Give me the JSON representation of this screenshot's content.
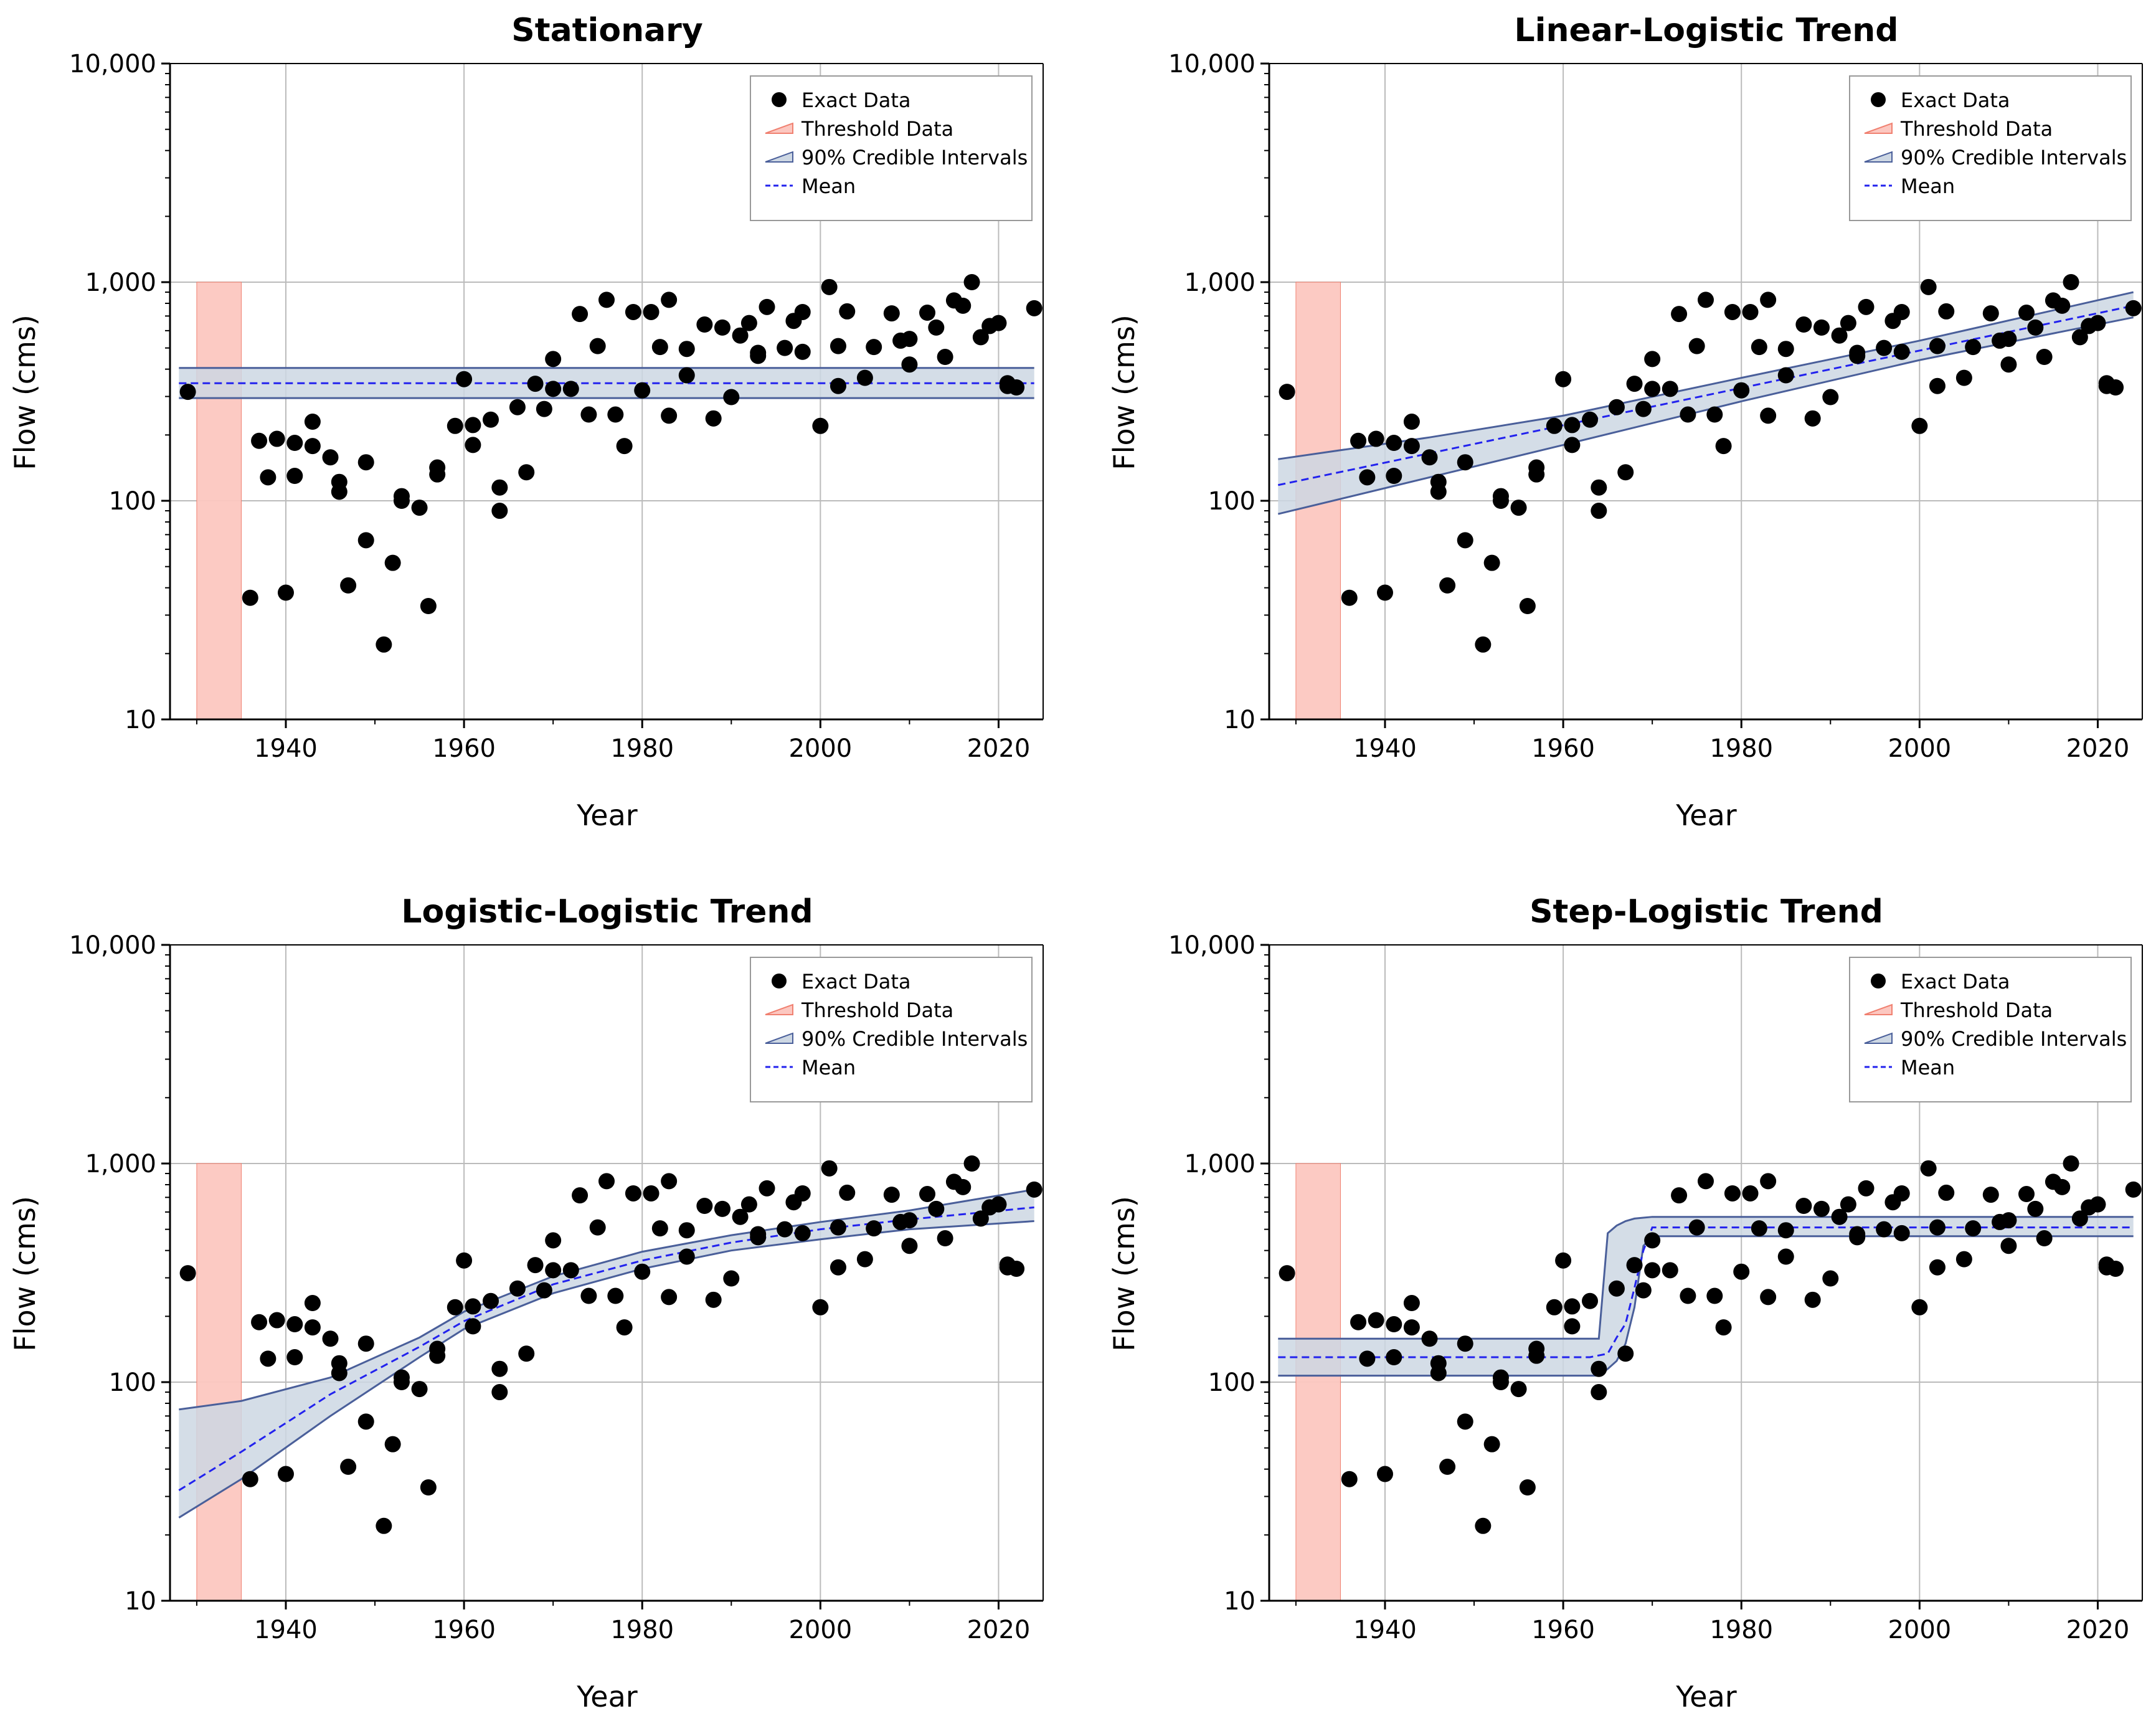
{
  "colors": {
    "threshold_fill": "#fcc7c0",
    "threshold_stroke": "#f08070",
    "band_fill": "#cdd7e3",
    "band_stroke": "#4a5f9a",
    "mean_line": "#2222ee",
    "points": "#000000",
    "grid": "#bbbbbb"
  },
  "legend": {
    "exact": "Exact Data",
    "threshold": "Threshold Data",
    "ci": "90% Credible Intervals",
    "mean": "Mean"
  },
  "observations": {
    "years": [
      1929,
      1936,
      1937,
      1938,
      1939,
      1940,
      1941,
      1941,
      1943,
      1943,
      1945,
      1946,
      1946,
      1947,
      1949,
      1949,
      1951,
      1952,
      1953,
      1953,
      1955,
      1956,
      1957,
      1957,
      1959,
      1960,
      1961,
      1961,
      1963,
      1964,
      1964,
      1966,
      1967,
      1968,
      1969,
      1970,
      1970,
      1972,
      1973,
      1974,
      1975,
      1976,
      1977,
      1978,
      1979,
      1980,
      1981,
      1982,
      1983,
      1983,
      1985,
      1985,
      1987,
      1988,
      1989,
      1990,
      1991,
      1992,
      1993,
      1993,
      1994,
      1996,
      1997,
      1998,
      1998,
      2000,
      2001,
      2002,
      2002,
      2003,
      2005,
      2006,
      2008,
      2009,
      2010,
      2010,
      2012,
      2013,
      2014,
      2015,
      2016,
      2017,
      2018,
      2019,
      2020,
      2021,
      2021,
      2022,
      2024
    ],
    "flows": [
      315,
      36,
      188,
      128,
      192,
      38,
      184,
      130,
      178,
      230,
      158,
      122,
      110,
      41,
      66,
      150,
      22,
      52,
      105,
      100,
      93,
      33,
      132,
      142,
      220,
      360,
      222,
      180,
      235,
      115,
      90,
      268,
      135,
      343,
      263,
      445,
      325,
      325,
      715,
      248,
      510,
      830,
      248,
      178,
      730,
      320,
      730,
      505,
      245,
      830,
      495,
      375,
      640,
      238,
      620,
      298,
      570,
      650,
      460,
      475,
      770,
      500,
      665,
      480,
      730,
      220,
      950,
      510,
      335,
      735,
      365,
      505,
      720,
      540,
      550,
      420,
      725,
      620,
      455,
      825,
      780,
      1000,
      560,
      630,
      650,
      335,
      345,
      330,
      760
    ]
  },
  "chart_data": [
    {
      "type": "scatter",
      "title": "Stationary",
      "xlabel": "Year",
      "ylabel": "Flow (cms)",
      "xlim": [
        1927,
        2025
      ],
      "ylim": [
        10,
        10000
      ],
      "yscale": "log",
      "xticks": [
        "1940",
        "1960",
        "1980",
        "2000",
        "2020"
      ],
      "yticks": [
        "10",
        "100",
        "1,000",
        "10,000"
      ],
      "grid": true,
      "legend_position": "top-right",
      "threshold": {
        "x": [
          1930,
          1935
        ],
        "y": [
          10,
          1000
        ]
      },
      "series": [
        {
          "kind": "points",
          "source": "observations"
        },
        {
          "kind": "band",
          "x": [
            1928,
            2024
          ],
          "lower": [
            295,
            295
          ],
          "upper": [
            405,
            405
          ]
        },
        {
          "kind": "mean",
          "x": [
            1928,
            2024
          ],
          "y": [
            345,
            345
          ]
        }
      ]
    },
    {
      "type": "scatter",
      "title": "Linear-Logistic Trend",
      "xlabel": "Year",
      "ylabel": "Flow (cms)",
      "xlim": [
        1927,
        2025
      ],
      "ylim": [
        10,
        10000
      ],
      "yscale": "log",
      "xticks": [
        "1940",
        "1960",
        "1980",
        "2000",
        "2020"
      ],
      "yticks": [
        "10",
        "100",
        "1,000",
        "10,000"
      ],
      "grid": true,
      "legend_position": "top-right",
      "threshold": {
        "x": [
          1930,
          1935
        ],
        "y": [
          10,
          1000
        ]
      },
      "series": [
        {
          "kind": "points",
          "source": "observations"
        },
        {
          "kind": "band",
          "x": [
            1928,
            1945,
            1960,
            1980,
            2000,
            2024
          ],
          "lower": [
            87,
            128,
            180,
            285,
            440,
            690
          ],
          "upper": [
            155,
            195,
            245,
            365,
            540,
            900
          ]
        },
        {
          "kind": "mean",
          "x": [
            1928,
            2024
          ],
          "y": [
            118,
            780
          ]
        }
      ]
    },
    {
      "type": "scatter",
      "title": "Logistic-Logistic Trend",
      "xlabel": "Year",
      "ylabel": "Flow (cms)",
      "xlim": [
        1927,
        2025
      ],
      "ylim": [
        10,
        10000
      ],
      "yscale": "log",
      "xticks": [
        "1940",
        "1960",
        "1980",
        "2000",
        "2020"
      ],
      "yticks": [
        "10",
        "100",
        "1,000",
        "10,000"
      ],
      "grid": true,
      "legend_position": "top-right",
      "threshold": {
        "x": [
          1930,
          1935
        ],
        "y": [
          10,
          1000
        ]
      },
      "series": [
        {
          "kind": "points",
          "source": "observations"
        },
        {
          "kind": "band",
          "x": [
            1928,
            1935,
            1945,
            1955,
            1960,
            1970,
            1980,
            1990,
            2000,
            2010,
            2024
          ],
          "lower": [
            24,
            36,
            70,
            130,
            175,
            255,
            330,
            400,
            450,
            500,
            545
          ],
          "upper": [
            75,
            82,
            105,
            160,
            210,
            305,
            395,
            470,
            540,
            610,
            760
          ]
        },
        {
          "kind": "mean",
          "x": [
            1928,
            1935,
            1945,
            1955,
            1960,
            1970,
            1980,
            1990,
            2000,
            2010,
            2024
          ],
          "y": [
            32,
            48,
            88,
            145,
            190,
            280,
            360,
            435,
            500,
            555,
            630
          ]
        }
      ]
    },
    {
      "type": "scatter",
      "title": "Step-Logistic Trend",
      "xlabel": "Year",
      "ylabel": "Flow (cms)",
      "xlim": [
        1927,
        2025
      ],
      "ylim": [
        10,
        10000
      ],
      "yscale": "log",
      "xticks": [
        "1940",
        "1960",
        "1980",
        "2000",
        "2020"
      ],
      "yticks": [
        "10",
        "100",
        "1,000",
        "10,000"
      ],
      "grid": true,
      "legend_position": "top-right",
      "threshold": {
        "x": [
          1930,
          1935
        ],
        "y": [
          10,
          1000
        ]
      },
      "series": [
        {
          "kind": "points",
          "source": "observations"
        },
        {
          "kind": "band",
          "x": [
            1928,
            1962,
            1964,
            1965,
            1966,
            1967,
            1968,
            1969,
            1970,
            2024
          ],
          "lower": [
            107,
            107,
            107,
            115,
            125,
            150,
            220,
            420,
            465,
            465
          ],
          "upper": [
            158,
            158,
            158,
            480,
            520,
            545,
            560,
            565,
            570,
            570
          ]
        },
        {
          "kind": "mean",
          "x": [
            1928,
            1963,
            1965,
            1966,
            1967,
            1968,
            1969,
            1970,
            2024
          ],
          "y": [
            130,
            130,
            135,
            160,
            185,
            270,
            400,
            510,
            510
          ]
        }
      ]
    }
  ]
}
